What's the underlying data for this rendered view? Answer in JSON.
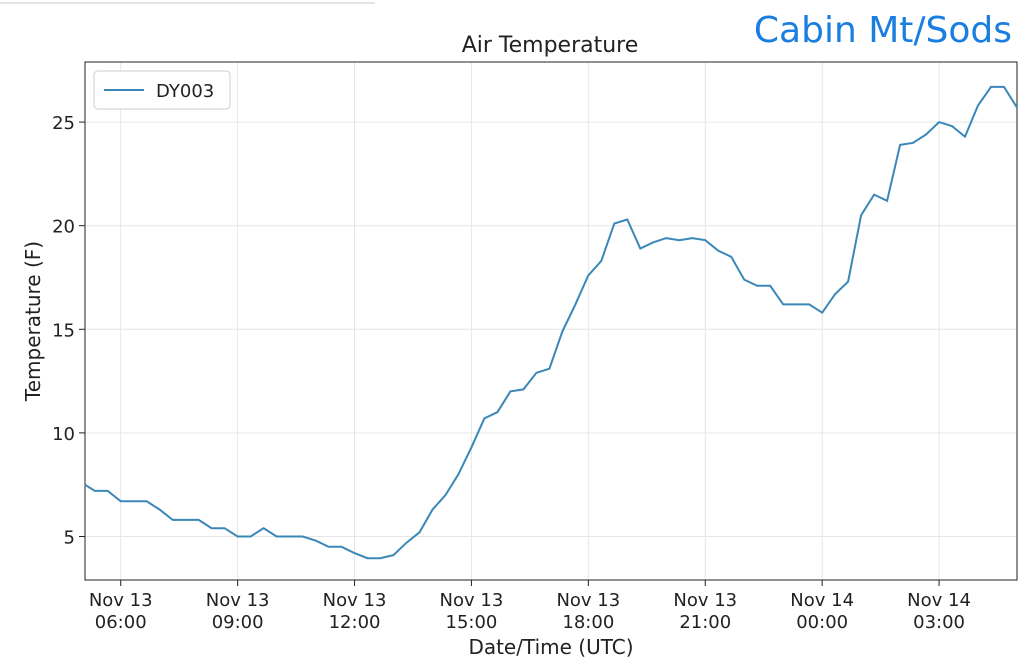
{
  "header": {
    "site": "Cabin Mt/Sods"
  },
  "chart_data": {
    "type": "line",
    "title": "Air Temperature",
    "x_label": "Date/Time (UTC)",
    "y_label": "Temperature (F)",
    "x": [
      "Nov 13 05:05",
      "Nov 13 05:20",
      "Nov 13 05:40",
      "Nov 13 06:00",
      "Nov 13 06:20",
      "Nov 13 06:40",
      "Nov 13 07:00",
      "Nov 13 07:20",
      "Nov 13 07:40",
      "Nov 13 08:00",
      "Nov 13 08:20",
      "Nov 13 08:40",
      "Nov 13 09:00",
      "Nov 13 09:20",
      "Nov 13 09:40",
      "Nov 13 10:00",
      "Nov 13 10:20",
      "Nov 13 10:40",
      "Nov 13 11:00",
      "Nov 13 11:20",
      "Nov 13 11:40",
      "Nov 13 12:00",
      "Nov 13 12:20",
      "Nov 13 12:40",
      "Nov 13 13:00",
      "Nov 13 13:20",
      "Nov 13 13:40",
      "Nov 13 14:00",
      "Nov 13 14:20",
      "Nov 13 14:40",
      "Nov 13 15:00",
      "Nov 13 15:20",
      "Nov 13 15:40",
      "Nov 13 16:00",
      "Nov 13 16:20",
      "Nov 13 16:40",
      "Nov 13 17:00",
      "Nov 13 17:20",
      "Nov 13 17:40",
      "Nov 13 18:00",
      "Nov 13 18:20",
      "Nov 13 18:40",
      "Nov 13 19:00",
      "Nov 13 19:20",
      "Nov 13 19:40",
      "Nov 13 20:00",
      "Nov 13 20:20",
      "Nov 13 20:40",
      "Nov 13 21:00",
      "Nov 13 21:20",
      "Nov 13 21:40",
      "Nov 13 22:00",
      "Nov 13 22:20",
      "Nov 13 22:40",
      "Nov 13 23:00",
      "Nov 13 23:20",
      "Nov 13 23:40",
      "Nov 14 00:00",
      "Nov 14 00:20",
      "Nov 14 00:40",
      "Nov 14 01:00",
      "Nov 14 01:20",
      "Nov 14 01:40",
      "Nov 14 02:00",
      "Nov 14 02:20",
      "Nov 14 02:40",
      "Nov 14 03:00",
      "Nov 14 03:20",
      "Nov 14 03:40",
      "Nov 14 04:00",
      "Nov 14 04:20",
      "Nov 14 04:40",
      "Nov 14 05:00"
    ],
    "series": [
      {
        "name": "DY003",
        "color": "#3a87b8",
        "values": [
          7.5,
          7.2,
          7.2,
          6.7,
          6.7,
          6.7,
          6.3,
          5.8,
          5.8,
          5.8,
          5.4,
          5.4,
          5.0,
          5.0,
          5.4,
          5.0,
          5.0,
          5.0,
          4.8,
          4.5,
          4.5,
          4.2,
          3.95,
          3.95,
          4.1,
          4.7,
          5.2,
          6.3,
          7.0,
          8.0,
          9.3,
          10.7,
          11.0,
          12.0,
          12.1,
          12.9,
          13.1,
          14.9,
          16.2,
          17.6,
          18.3,
          20.1,
          20.3,
          18.9,
          19.2,
          19.4,
          19.3,
          19.4,
          19.3,
          18.8,
          18.5,
          17.4,
          17.1,
          17.1,
          16.2,
          16.2,
          16.2,
          15.8,
          16.7,
          17.3,
          20.5,
          21.5,
          21.2,
          23.9,
          24.0,
          24.4,
          25.0,
          24.8,
          24.3,
          25.8,
          26.7,
          26.7,
          25.7
        ]
      }
    ],
    "xlim": [
      "Nov 13 05:05",
      "Nov 14 05:00"
    ],
    "xticks": [
      {
        "value": "Nov 13 06:00",
        "label": [
          "Nov 13",
          "06:00"
        ]
      },
      {
        "value": "Nov 13 09:00",
        "label": [
          "Nov 13",
          "09:00"
        ]
      },
      {
        "value": "Nov 13 12:00",
        "label": [
          "Nov 13",
          "12:00"
        ]
      },
      {
        "value": "Nov 13 15:00",
        "label": [
          "Nov 13",
          "15:00"
        ]
      },
      {
        "value": "Nov 13 18:00",
        "label": [
          "Nov 13",
          "18:00"
        ]
      },
      {
        "value": "Nov 13 21:00",
        "label": [
          "Nov 13",
          "21:00"
        ]
      },
      {
        "value": "Nov 14 00:00",
        "label": [
          "Nov 14",
          "00:00"
        ]
      },
      {
        "value": "Nov 14 03:00",
        "label": [
          "Nov 14",
          "03:00"
        ]
      }
    ],
    "ylim": [
      2.9,
      27.9
    ],
    "yticks": [
      5,
      10,
      15,
      20,
      25
    ],
    "grid": true,
    "legend": "upper left"
  }
}
